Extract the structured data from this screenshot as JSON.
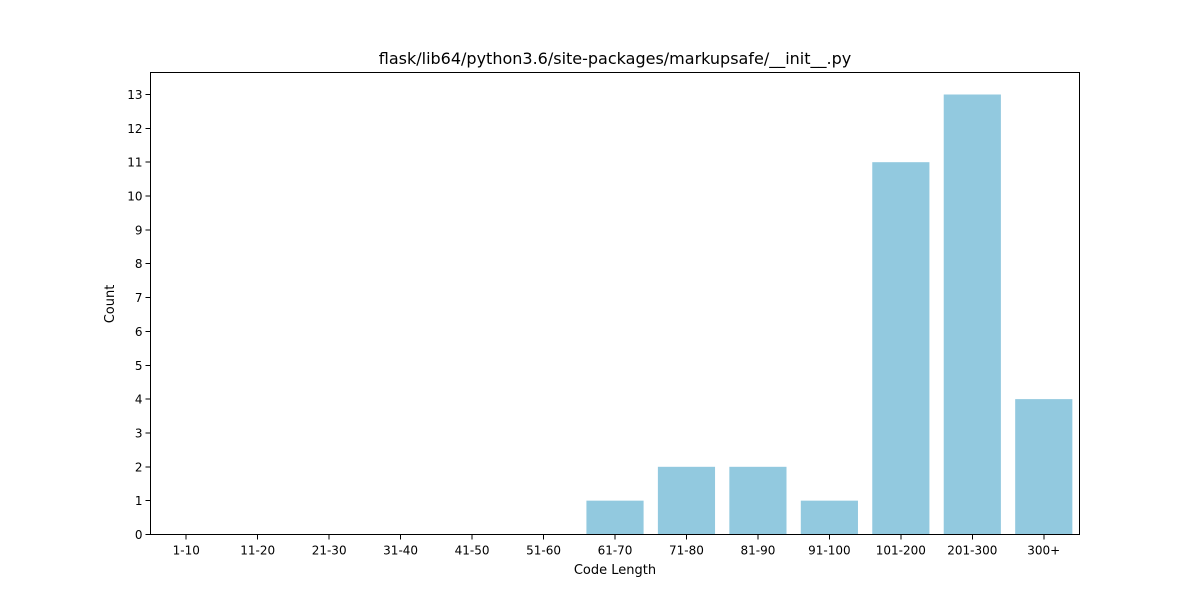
{
  "chart_data": {
    "type": "bar",
    "title": "flask/lib64/python3.6/site-packages/markupsafe/__init__.py",
    "xlabel": "Code Length",
    "ylabel": "Count",
    "categories": [
      "1-10",
      "11-20",
      "21-30",
      "31-40",
      "41-50",
      "51-60",
      "61-70",
      "71-80",
      "81-90",
      "91-100",
      "101-200",
      "201-300",
      "300+"
    ],
    "values": [
      0,
      0,
      0,
      0,
      0,
      0,
      1,
      2,
      2,
      1,
      11,
      13,
      4
    ],
    "ylim": [
      0,
      13.65
    ],
    "yticks": [
      0,
      1,
      2,
      3,
      4,
      5,
      6,
      7,
      8,
      9,
      10,
      11,
      12,
      13
    ],
    "bar_color": "#92c9df",
    "grid": false,
    "legend": "none"
  }
}
